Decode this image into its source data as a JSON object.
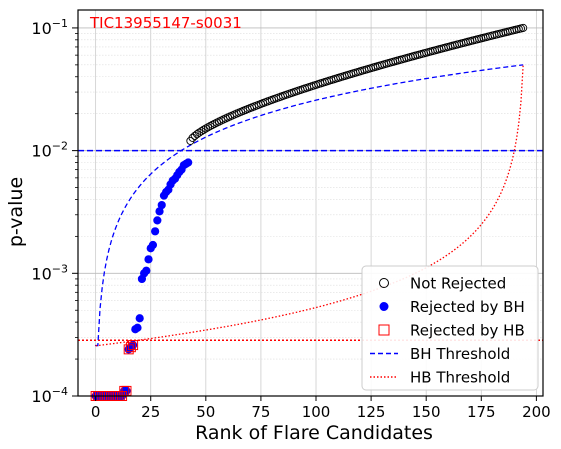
{
  "chart_data": {
    "type": "scatter",
    "annotation": "TIC13955147-s0031",
    "xlabel": "Rank of Flare Candidates",
    "ylabel": "p-value",
    "xlim": [
      -8,
      203
    ],
    "ylim": [
      0.0001,
      0.14
    ],
    "yscale": "log",
    "grid": true,
    "legend_position": "lower-right",
    "x_ticks": [
      0,
      25,
      50,
      75,
      100,
      125,
      150,
      175,
      200
    ],
    "x_tick_labels": [
      "0",
      "25",
      "50",
      "75",
      "100",
      "125",
      "150",
      "175",
      "200"
    ],
    "y_ticks": [
      0.0001,
      0.001,
      0.01,
      0.1
    ],
    "y_tick_bases": [
      "10",
      "10",
      "10",
      "10"
    ],
    "y_tick_exponents": [
      "−4",
      "−3",
      "−2",
      "−1"
    ],
    "n_candidates": 194,
    "alpha": 0.05,
    "series": [
      {
        "name": "Not Rejected",
        "marker": "open-circle",
        "color": "#000000",
        "x_start": 43,
        "x_end": 194,
        "y_start": 0.012,
        "y_end": 0.1,
        "points_computed": true
      },
      {
        "name": "Rejected by BH",
        "marker": "filled-circle",
        "color": "#0000ff",
        "x": [
          0,
          1,
          2,
          3,
          4,
          5,
          6,
          7,
          8,
          9,
          10,
          11,
          12,
          13,
          14,
          15,
          16,
          17,
          18,
          19,
          20,
          21,
          22,
          23,
          24,
          25,
          26,
          27,
          28,
          29,
          30,
          31,
          32,
          33,
          34,
          35,
          36,
          37,
          38,
          39,
          40,
          41,
          42
        ],
        "y": [
          0.0001,
          0.0001,
          0.0001,
          0.0001,
          0.0001,
          0.0001,
          0.0001,
          0.0001,
          0.0001,
          0.0001,
          0.0001,
          0.0001,
          0.0001,
          0.00011,
          0.00011,
          0.00024,
          0.00025,
          0.00026,
          0.00035,
          0.00036,
          0.00043,
          0.0009,
          0.001,
          0.00105,
          0.0013,
          0.0016,
          0.0017,
          0.0022,
          0.0027,
          0.0032,
          0.0036,
          0.0043,
          0.0046,
          0.0048,
          0.0053,
          0.0057,
          0.0059,
          0.0063,
          0.0067,
          0.007,
          0.0076,
          0.0078,
          0.008
        ]
      },
      {
        "name": "Rejected by HB",
        "marker": "open-square",
        "color": "#ff0000",
        "x": [
          0,
          1,
          2,
          3,
          4,
          5,
          6,
          7,
          8,
          9,
          10,
          11,
          12,
          13,
          14,
          15,
          16,
          17
        ],
        "y": [
          0.0001,
          0.0001,
          0.0001,
          0.0001,
          0.0001,
          0.0001,
          0.0001,
          0.0001,
          0.0001,
          0.0001,
          0.0001,
          0.0001,
          0.0001,
          0.00011,
          0.00011,
          0.00024,
          0.00025,
          0.00026
        ]
      },
      {
        "name": "BH Threshold",
        "line": "dashed",
        "color": "#0000ff",
        "horizontal_y": 0.01,
        "formula": "alpha*k/n"
      },
      {
        "name": "HB Threshold",
        "line": "dotted",
        "color": "#ff0000",
        "horizontal_y": 0.000285,
        "formula": "alpha/(n-k+1)"
      }
    ]
  }
}
